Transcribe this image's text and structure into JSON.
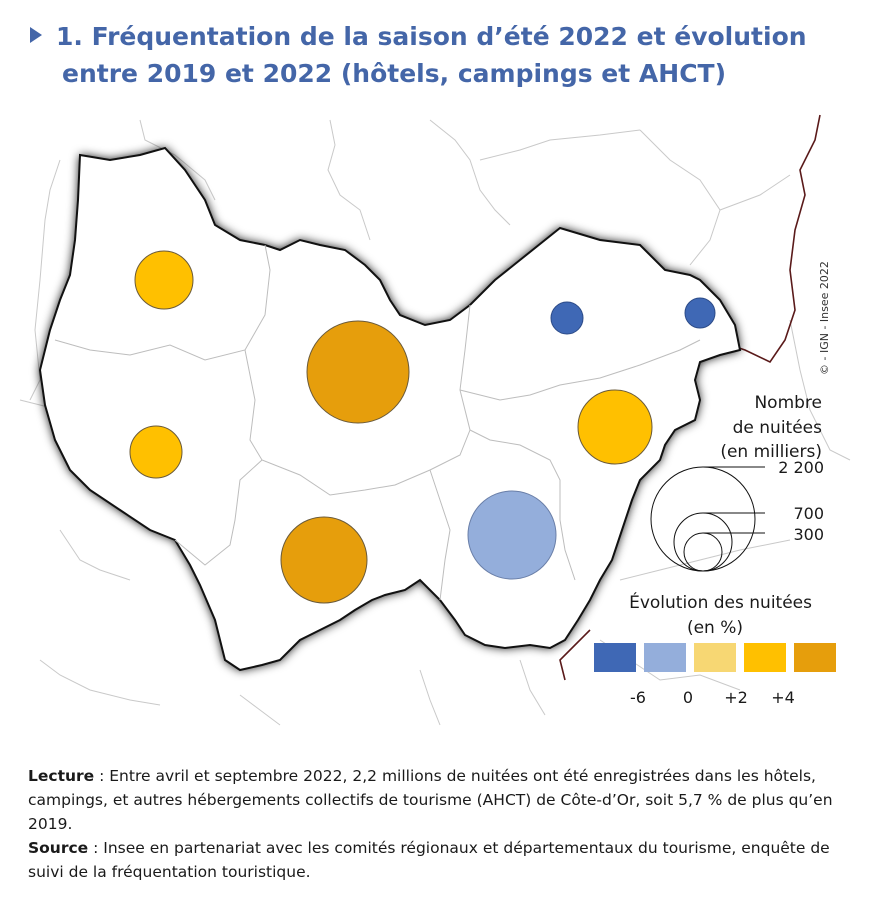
{
  "title": {
    "line1": "1. Fréquentation de la saison d’été 2022 et évolution",
    "line2": "entre 2019 et 2022 (hôtels, campings et AHCT)"
  },
  "credit": "© - IGN - Insee 2022",
  "legend_size": {
    "title_line1": "Nombre",
    "title_line2": "de nuitées",
    "title_line3": "(en milliers)",
    "values": [
      "2 200",
      "700",
      "300"
    ]
  },
  "legend_color": {
    "title_line1": "Évolution des nuitées",
    "title_line2": "(en %)",
    "breaks": [
      "-6",
      "0",
      "+2",
      "+4"
    ],
    "colors": [
      "#3f68b5",
      "#94aedb",
      "#f7d773",
      "#ffc000",
      "#e69e0c"
    ]
  },
  "departments": [
    {
      "nuitees_k": 700,
      "class_color": "#ffc000"
    },
    {
      "nuitees_k": 2200,
      "class_color": "#e69e0c"
    },
    {
      "nuitees_k": 300,
      "class_color": "#3f68b5"
    },
    {
      "nuitees_k": 300,
      "class_color": "#3f68b5"
    },
    {
      "nuitees_k": 600,
      "class_color": "#ffc000"
    },
    {
      "nuitees_k": 1700,
      "class_color": "#e69e0c"
    },
    {
      "nuitees_k": 1700,
      "class_color": "#94aedb"
    },
    {
      "nuitees_k": 1100,
      "class_color": "#ffc000"
    }
  ],
  "notes": {
    "lecture_label": "Lecture",
    "lecture_text": " : Entre avril et septembre 2022, 2,2 millions de nuitées ont été enregistrées dans les hôtels, campings, et autres hébergements collectifs de tourisme (AHCT) de Côte-d’Or, soit 5,7 % de plus qu’en 2019.",
    "source_label": "Source",
    "source_text": " : Insee en partenariat avec les comités régionaux et départementaux du tourisme, enquête de suivi de la fréquentation touristique."
  }
}
